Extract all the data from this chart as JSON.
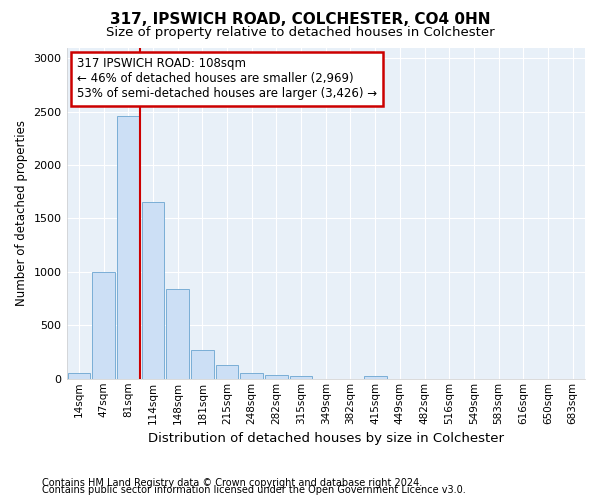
{
  "title1": "317, IPSWICH ROAD, COLCHESTER, CO4 0HN",
  "title2": "Size of property relative to detached houses in Colchester",
  "xlabel": "Distribution of detached houses by size in Colchester",
  "ylabel": "Number of detached properties",
  "footnote1": "Contains HM Land Registry data © Crown copyright and database right 2024.",
  "footnote2": "Contains public sector information licensed under the Open Government Licence v3.0.",
  "bar_labels": [
    "14sqm",
    "47sqm",
    "81sqm",
    "114sqm",
    "148sqm",
    "181sqm",
    "215sqm",
    "248sqm",
    "282sqm",
    "315sqm",
    "349sqm",
    "382sqm",
    "415sqm",
    "449sqm",
    "482sqm",
    "516sqm",
    "549sqm",
    "583sqm",
    "616sqm",
    "650sqm",
    "683sqm"
  ],
  "bar_values": [
    55,
    1000,
    2460,
    1650,
    840,
    270,
    130,
    50,
    35,
    30,
    0,
    0,
    30,
    0,
    0,
    0,
    0,
    0,
    0,
    0,
    0
  ],
  "bar_color": "#ccdff5",
  "bar_edge_color": "#7aaed6",
  "vline_color": "#cc0000",
  "vline_x_index": 2,
  "annotation_text": "317 IPSWICH ROAD: 108sqm\n← 46% of detached houses are smaller (2,969)\n53% of semi-detached houses are larger (3,426) →",
  "box_edge_color": "#cc0000",
  "ylim": [
    0,
    3100
  ],
  "background_color": "#ffffff",
  "plot_bg_color": "#e8f0f8",
  "grid_color": "#ffffff",
  "title1_fontsize": 11,
  "title2_fontsize": 9.5,
  "ylabel_fontsize": 8.5,
  "xlabel_fontsize": 9.5,
  "tick_fontsize": 7.5,
  "footnote_fontsize": 7
}
